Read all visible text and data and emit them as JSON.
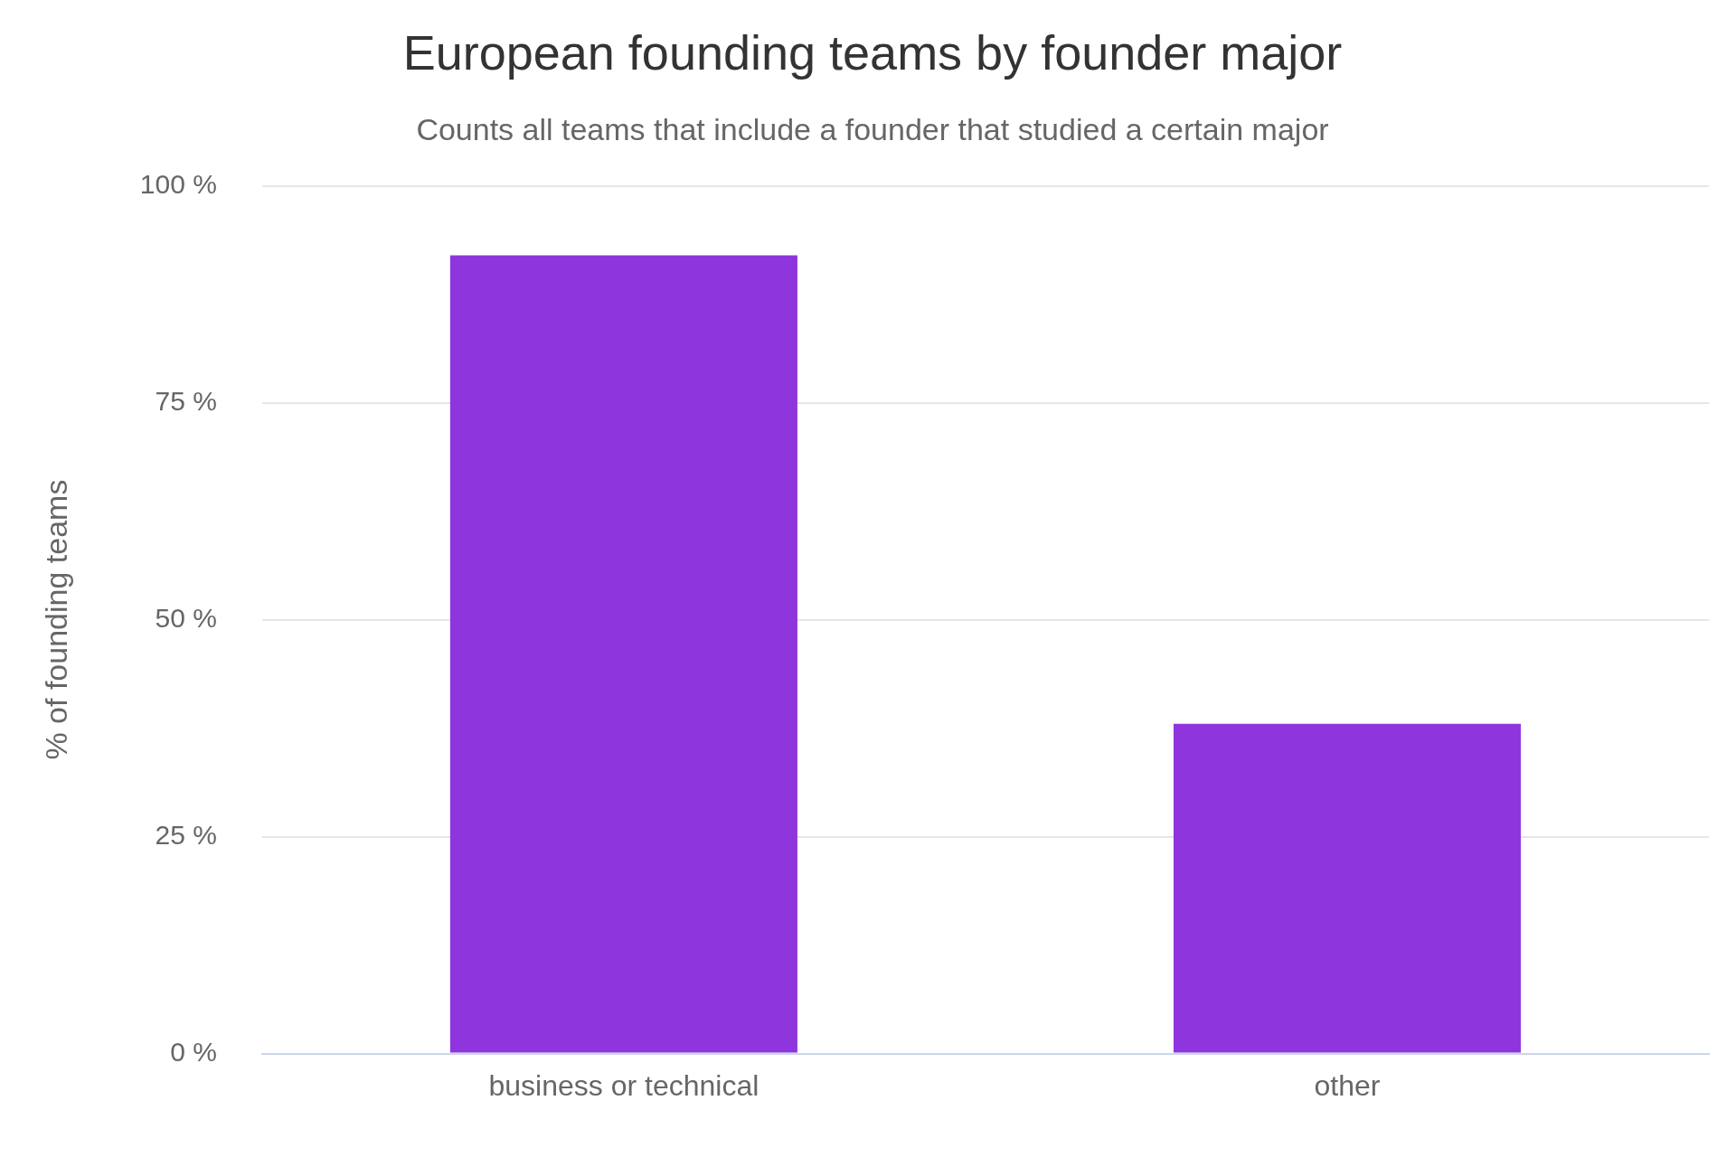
{
  "chart_data": {
    "type": "bar",
    "title": "European founding teams by founder major",
    "subtitle": "Counts all teams that include a founder that studied a certain major",
    "ylabel": "% of founding teams",
    "categories": [
      "business or technical",
      "other"
    ],
    "values": [
      92,
      38
    ],
    "color": "#8e35dd",
    "ylim": [
      0,
      100
    ],
    "yticks": [
      {
        "value": 0,
        "label": "0 %"
      },
      {
        "value": 25,
        "label": "25 %"
      },
      {
        "value": 50,
        "label": "50 %"
      },
      {
        "value": 75,
        "label": "75 %"
      },
      {
        "value": 100,
        "label": "100 %"
      }
    ],
    "grid": "y",
    "legend": false
  }
}
